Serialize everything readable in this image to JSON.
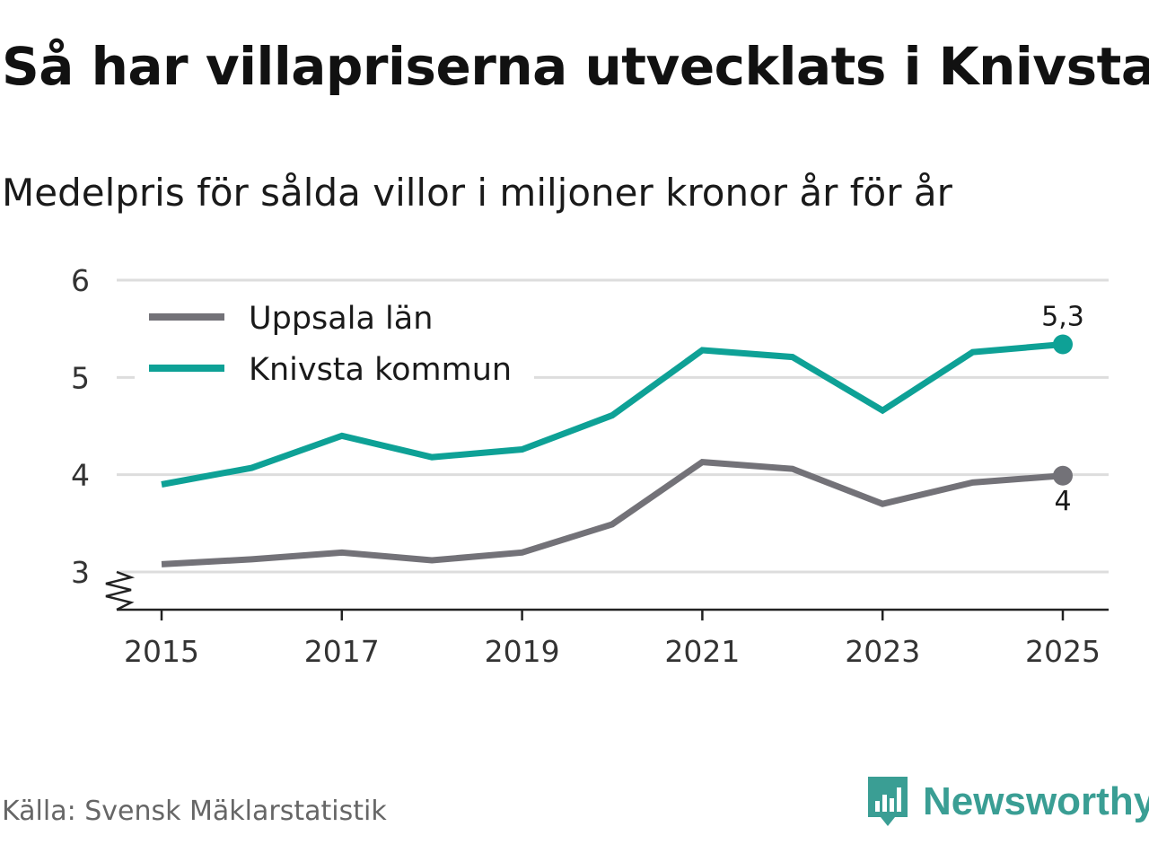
{
  "title": "Så har villapriserna utvecklats i Knivsta",
  "subtitle": "Medelpris för sålda villor i miljoner kronor år för år",
  "source": "Källa: Svensk Mäklarstatistik",
  "brand": "Newsworthy",
  "colors": {
    "uppsala": "#737278",
    "knivsta": "#0ea196",
    "grid": "#dddddd",
    "axis": "#222222",
    "brand": "#3a9e94"
  },
  "chart_data": {
    "type": "line",
    "title": "Så har villapriserna utvecklats i Knivsta",
    "subtitle": "Medelpris för sålda villor i miljoner kronor år för år",
    "xlabel": "",
    "ylabel": "",
    "x": [
      2015,
      2016,
      2017,
      2018,
      2019,
      2020,
      2021,
      2022,
      2023,
      2024,
      2025
    ],
    "xticks": [
      "2015",
      "2017",
      "2019",
      "2021",
      "2023",
      "2025"
    ],
    "yticks": [
      "3",
      "4",
      "5",
      "6"
    ],
    "ylim": [
      3,
      6
    ],
    "axis_break": true,
    "grid": true,
    "legend_position": "top-left",
    "series": [
      {
        "name": "Uppsala län",
        "color": "#737278",
        "values": [
          3.08,
          3.13,
          3.2,
          3.12,
          3.2,
          3.49,
          4.13,
          4.06,
          3.7,
          3.92,
          3.99
        ],
        "end_label": "4"
      },
      {
        "name": "Knivsta kommun",
        "color": "#0ea196",
        "values": [
          3.9,
          4.07,
          4.4,
          4.18,
          4.26,
          4.61,
          5.28,
          5.21,
          4.66,
          5.26,
          5.34
        ],
        "end_label": "5,3"
      }
    ]
  }
}
